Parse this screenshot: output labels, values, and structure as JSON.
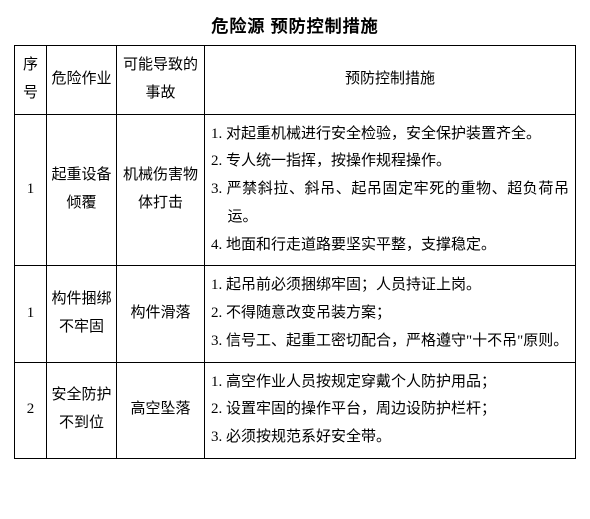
{
  "title": "危险源 预防控制措施",
  "colors": {
    "text": "#000000",
    "background": "#ffffff",
    "border": "#000000"
  },
  "typography": {
    "title_fontsize": 17,
    "cell_fontsize": 15,
    "line_height": 1.85,
    "font_family": "SimSun"
  },
  "headers": {
    "no": "序号",
    "hazard": "危险作业",
    "accident": "可能导致的事故",
    "measure": "预防控制措施"
  },
  "rows": [
    {
      "no": "1",
      "hazard": "起重设备倾覆",
      "accident": "机械伤害物体打击",
      "measures": [
        "1. 对起重机械进行安全检验，安全保护装置齐全。",
        "2. 专人统一指挥，按操作规程操作。",
        "3. 严禁斜拉、斜吊、起吊固定牢死的重物、超负荷吊运。",
        "4. 地面和行走道路要坚实平整，支撑稳定。"
      ]
    },
    {
      "no": "1",
      "hazard": "构件捆绑不牢固",
      "accident": "构件滑落",
      "measures": [
        "1. 起吊前必须捆绑牢固；人员持证上岗。",
        "2. 不得随意改变吊装方案；",
        "3. 信号工、起重工密切配合，严格遵守\"十不吊\"原则。"
      ]
    },
    {
      "no": "2",
      "hazard": "安全防护不到位",
      "accident": "高空坠落",
      "measures": [
        "1. 高空作业人员按规定穿戴个人防护用品；",
        "2. 设置牢固的操作平台，周边设防护栏杆；",
        "3. 必须按规范系好安全带。"
      ]
    }
  ]
}
